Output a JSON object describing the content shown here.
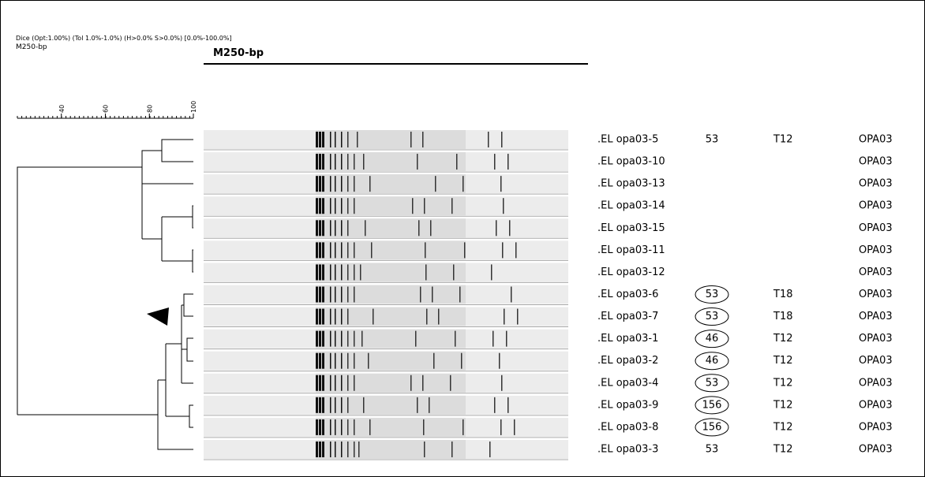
{
  "header": {
    "settings": "Dice (Opt:1.00%) (Tol 1.0%-1.0%) (H>0.0% S>0.0%) [0.0%-100.0%]",
    "marker": "M250-bp",
    "gel_title": "M250-bp"
  },
  "scale": {
    "range": [
      20,
      100
    ],
    "ticks": [
      40,
      60,
      80,
      100
    ]
  },
  "rows": [
    {
      "label": ".EL opa03-5",
      "number": "53",
      "circled": false,
      "type": "T12",
      "primer": "OPA03"
    },
    {
      "label": ".EL opa03-10",
      "primer": "OPA03"
    },
    {
      "label": ".EL opa03-13",
      "primer": "OPA03"
    },
    {
      "label": ".EL opa03-14",
      "primer": "OPA03"
    },
    {
      "label": ".EL opa03-15",
      "primer": "OPA03"
    },
    {
      "label": ".EL opa03-11",
      "primer": "OPA03"
    },
    {
      "label": ".EL opa03-12",
      "primer": "OPA03"
    },
    {
      "label": ".EL opa03-6",
      "number": "53",
      "circled": true,
      "type": "T18",
      "primer": "OPA03"
    },
    {
      "label": ".EL opa03-7",
      "number": "53",
      "circled": true,
      "type": "T18",
      "primer": "OPA03"
    },
    {
      "label": ".EL opa03-1",
      "number": "46",
      "circled": true,
      "type": "T12",
      "primer": "OPA03"
    },
    {
      "label": ".EL opa03-2",
      "number": "46",
      "circled": true,
      "type": "T12",
      "primer": "OPA03"
    },
    {
      "label": ".EL opa03-4",
      "number": "53",
      "circled": true,
      "type": "T12",
      "primer": "OPA03"
    },
    {
      "label": ".EL opa03-9",
      "number": "156",
      "circled": true,
      "type": "T12",
      "primer": "OPA03"
    },
    {
      "label": ".EL opa03-8",
      "number": "156",
      "circled": true,
      "type": "T12",
      "primer": "OPA03"
    },
    {
      "label": ".EL opa03-3",
      "number": "53",
      "circled": false,
      "type": "T12",
      "primer": "OPA03"
    }
  ]
}
